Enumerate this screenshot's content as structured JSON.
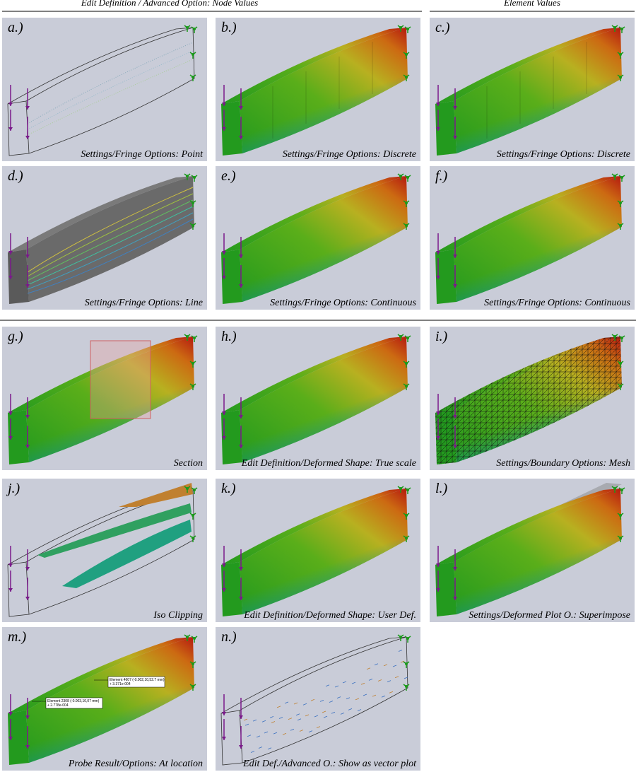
{
  "header": {
    "left": "Edit Definition / Advanced Option: Node Values",
    "right": "Element Values"
  },
  "panels": [
    {
      "label": "a.)",
      "caption": "Settings/Fringe Options: Point"
    },
    {
      "label": "b.)",
      "caption": "Settings/Fringe Options: Discrete"
    },
    {
      "label": "c.)",
      "caption": "Settings/Fringe Options: Discrete"
    },
    {
      "label": "d.)",
      "caption": "Settings/Fringe Options: Line"
    },
    {
      "label": "e.)",
      "caption": "Settings/Fringe Options: Continuous"
    },
    {
      "label": "f.)",
      "caption": "Settings/Fringe Options: Continuous"
    },
    {
      "label": "g.)",
      "caption": "Section"
    },
    {
      "label": "h.)",
      "caption": "Edit Definition/Deformed Shape: True scale"
    },
    {
      "label": "i.)",
      "caption": "Settings/Boundary Options: Mesh"
    },
    {
      "label": "j.)",
      "caption": "Iso Clipping"
    },
    {
      "label": "k.)",
      "caption": "Edit Definition/Deformed Shape: User Def."
    },
    {
      "label": "l.)",
      "caption": "Settings/Deformed Plot O.: Superimpose"
    },
    {
      "label": "m.)",
      "caption": "Probe Result/Options: At location"
    },
    {
      "label": "n.)",
      "caption": "Edit Def./Advanced O.: Show as vector plot"
    }
  ],
  "probes": [
    {
      "line1": "Element 4607 (-0.002,10,52.7 mm)",
      "line2": "+ 3.371e-004"
    },
    {
      "line1": "Element 2308 (-0.003,10,07 mm)",
      "line2": "+ 2.778e-004"
    }
  ]
}
